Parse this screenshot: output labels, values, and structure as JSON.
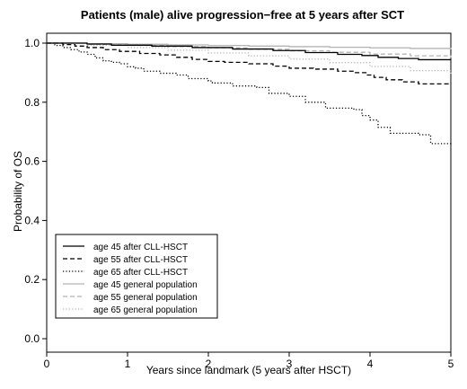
{
  "chart_data": {
    "type": "line",
    "step": true,
    "title": "Patients (male) alive progression−free at 5 years after SCT",
    "xlabel": "Years since landmark (5 years after HSCT)",
    "ylabel": "Probability of OS",
    "xlim": [
      0,
      5
    ],
    "ylim": [
      0,
      1
    ],
    "x_ticks": [
      "0",
      "1",
      "2",
      "3",
      "4",
      "5"
    ],
    "y_ticks": [
      "0.0",
      "0.2",
      "0.4",
      "0.6",
      "0.8",
      "1.0"
    ],
    "grid": false,
    "legend_position": "bottom-left",
    "series": [
      {
        "name": "age 45 after CLL-HSCT",
        "color": "#000000",
        "dash": "solid",
        "points": [
          [
            0,
            1.0
          ],
          [
            0.5,
            0.997
          ],
          [
            0.8,
            0.993
          ],
          [
            1.3,
            0.99
          ],
          [
            1.8,
            0.985
          ],
          [
            2.3,
            0.98
          ],
          [
            2.8,
            0.975
          ],
          [
            3.2,
            0.968
          ],
          [
            3.6,
            0.962
          ],
          [
            3.9,
            0.958
          ],
          [
            4.1,
            0.952
          ],
          [
            4.35,
            0.948
          ],
          [
            4.6,
            0.944
          ],
          [
            5,
            0.944
          ]
        ]
      },
      {
        "name": "age 55 after CLL-HSCT",
        "color": "#000000",
        "dash": "dashed",
        "points": [
          [
            0,
            1.0
          ],
          [
            0.2,
            0.995
          ],
          [
            0.35,
            0.99
          ],
          [
            0.5,
            0.985
          ],
          [
            0.7,
            0.978
          ],
          [
            0.9,
            0.972
          ],
          [
            1.15,
            0.965
          ],
          [
            1.4,
            0.96
          ],
          [
            1.6,
            0.952
          ],
          [
            1.8,
            0.945
          ],
          [
            2.0,
            0.938
          ],
          [
            2.2,
            0.935
          ],
          [
            2.5,
            0.93
          ],
          [
            2.8,
            0.922
          ],
          [
            3.0,
            0.915
          ],
          [
            3.3,
            0.912
          ],
          [
            3.6,
            0.905
          ],
          [
            3.8,
            0.9
          ],
          [
            3.95,
            0.892
          ],
          [
            4.05,
            0.884
          ],
          [
            4.2,
            0.876
          ],
          [
            4.4,
            0.869
          ],
          [
            4.6,
            0.862
          ],
          [
            5,
            0.862
          ]
        ]
      },
      {
        "name": "age 65 after CLL-HSCT",
        "color": "#000000",
        "dash": "dotted",
        "points": [
          [
            0,
            1.0
          ],
          [
            0.1,
            0.992
          ],
          [
            0.2,
            0.985
          ],
          [
            0.3,
            0.978
          ],
          [
            0.4,
            0.97
          ],
          [
            0.5,
            0.962
          ],
          [
            0.6,
            0.95
          ],
          [
            0.7,
            0.94
          ],
          [
            0.8,
            0.935
          ],
          [
            0.9,
            0.93
          ],
          [
            1.0,
            0.92
          ],
          [
            1.1,
            0.915
          ],
          [
            1.2,
            0.905
          ],
          [
            1.4,
            0.898
          ],
          [
            1.6,
            0.892
          ],
          [
            1.75,
            0.88
          ],
          [
            2.0,
            0.872
          ],
          [
            2.05,
            0.865
          ],
          [
            2.3,
            0.855
          ],
          [
            2.6,
            0.85
          ],
          [
            2.75,
            0.83
          ],
          [
            3.0,
            0.82
          ],
          [
            3.2,
            0.8
          ],
          [
            3.45,
            0.78
          ],
          [
            3.8,
            0.775
          ],
          [
            3.9,
            0.755
          ],
          [
            4.0,
            0.74
          ],
          [
            4.1,
            0.715
          ],
          [
            4.25,
            0.695
          ],
          [
            4.6,
            0.69
          ],
          [
            4.75,
            0.66
          ],
          [
            5,
            0.655
          ]
        ]
      },
      {
        "name": "age 45 general population",
        "color": "#b4b4b4",
        "dash": "solid",
        "points": [
          [
            0,
            1.0
          ],
          [
            0.5,
            0.998
          ],
          [
            1.0,
            0.996
          ],
          [
            1.5,
            0.994
          ],
          [
            2.0,
            0.992
          ],
          [
            2.5,
            0.99
          ],
          [
            3.0,
            0.988
          ],
          [
            3.5,
            0.986
          ],
          [
            4.0,
            0.984
          ],
          [
            4.5,
            0.982
          ],
          [
            5,
            0.979
          ]
        ]
      },
      {
        "name": "age 55 general population",
        "color": "#b4b4b4",
        "dash": "dashed",
        "points": [
          [
            0,
            1.0
          ],
          [
            0.5,
            0.996
          ],
          [
            1.0,
            0.992
          ],
          [
            1.5,
            0.988
          ],
          [
            2.0,
            0.984
          ],
          [
            2.5,
            0.979
          ],
          [
            3.0,
            0.974
          ],
          [
            3.5,
            0.969
          ],
          [
            4.0,
            0.963
          ],
          [
            4.5,
            0.957
          ],
          [
            5,
            0.951
          ]
        ]
      },
      {
        "name": "age 65 general population",
        "color": "#b4b4b4",
        "dash": "dotted",
        "points": [
          [
            0,
            1.0
          ],
          [
            0.5,
            0.993
          ],
          [
            1.0,
            0.985
          ],
          [
            1.5,
            0.976
          ],
          [
            2.0,
            0.967
          ],
          [
            2.5,
            0.957
          ],
          [
            3.0,
            0.946
          ],
          [
            3.5,
            0.934
          ],
          [
            4.0,
            0.921
          ],
          [
            4.5,
            0.907
          ],
          [
            5,
            0.893
          ]
        ]
      }
    ]
  }
}
